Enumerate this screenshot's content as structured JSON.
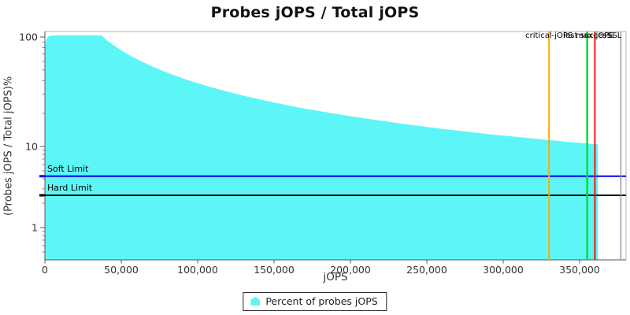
{
  "header": {
    "title": "Probes jOPS / Total jOPS"
  },
  "axes": {
    "x_title": "jOPS",
    "y_title": "(Probes jOPS / Total jOPS)%"
  },
  "legend": {
    "label": "Percent of probes jOPS",
    "marker_color": "#5cf6f6"
  },
  "chart_data": {
    "type": "area",
    "title": "Probes jOPS / Total jOPS",
    "xlabel": "jOPS",
    "ylabel": "(Probes jOPS / Total jOPS)%",
    "x_range": [
      0,
      380500
    ],
    "y_scale": "log",
    "y_range": [
      0.4,
      115
    ],
    "grid": false,
    "legend_position": "bottom",
    "x_ticks": [
      {
        "value": 0,
        "label": "0"
      },
      {
        "value": 50000,
        "label": "50,000"
      },
      {
        "value": 100000,
        "label": "100,000"
      },
      {
        "value": 150000,
        "label": "150,000"
      },
      {
        "value": 200000,
        "label": "200,000"
      },
      {
        "value": 250000,
        "label": "250,000"
      },
      {
        "value": 300000,
        "label": "300,000"
      },
      {
        "value": 350000,
        "label": "350,000"
      }
    ],
    "y_major_ticks": [
      {
        "value": 1,
        "label": "1"
      },
      {
        "value": 10,
        "label": "10"
      },
      {
        "value": 100,
        "label": "100"
      }
    ],
    "y_minor_ticks": [
      0.5,
      0.6,
      0.7,
      0.8,
      0.9,
      2,
      3,
      4,
      5,
      6,
      7,
      8,
      9,
      20,
      30,
      40,
      50,
      60,
      70,
      80,
      90
    ],
    "series": [
      {
        "name": "Percent of probes jOPS",
        "color": "#5cf6f6",
        "points": [
          [
            0,
            77
          ],
          [
            500,
            88
          ],
          [
            1000,
            95
          ],
          [
            2000,
            101
          ],
          [
            4000,
            103
          ],
          [
            8000,
            103.5
          ],
          [
            37000,
            103.5
          ],
          [
            40000,
            94.5
          ],
          [
            45000,
            84
          ],
          [
            50000,
            75.6
          ],
          [
            55000,
            68.7
          ],
          [
            60000,
            63
          ],
          [
            70000,
            54
          ],
          [
            80000,
            47.2
          ],
          [
            90000,
            42
          ],
          [
            100000,
            37.8
          ],
          [
            115000,
            32.9
          ],
          [
            130000,
            29.1
          ],
          [
            150000,
            25.2
          ],
          [
            170000,
            22.2
          ],
          [
            200000,
            18.9
          ],
          [
            230000,
            16.4
          ],
          [
            260000,
            14.5
          ],
          [
            290000,
            13.0
          ],
          [
            320000,
            11.8
          ],
          [
            340000,
            11.1
          ],
          [
            355000,
            10.65
          ],
          [
            362000,
            10.44
          ]
        ]
      }
    ],
    "h_markers": [
      {
        "label": "Soft Limit",
        "value": 4.3,
        "color": "#0000ee",
        "width": 2
      },
      {
        "label": "Hard Limit",
        "value": 2.5,
        "color": "#000000",
        "width": 2
      }
    ],
    "v_markers": [
      {
        "label": "critical-jOPS",
        "value": 330000,
        "color": "#ffaa00",
        "width": 2,
        "align": "center"
      },
      {
        "label": "last success",
        "value": 355000,
        "color": "#00dd33",
        "width": 2.5,
        "align": "center"
      },
      {
        "label": "max-jOPS",
        "value": 360000,
        "color": "#ff1111",
        "width": 2,
        "align": "center"
      },
      {
        "label": "SSL",
        "value": 377000,
        "color": "#9a9a9a",
        "width": 1.5,
        "align": "end"
      }
    ]
  }
}
